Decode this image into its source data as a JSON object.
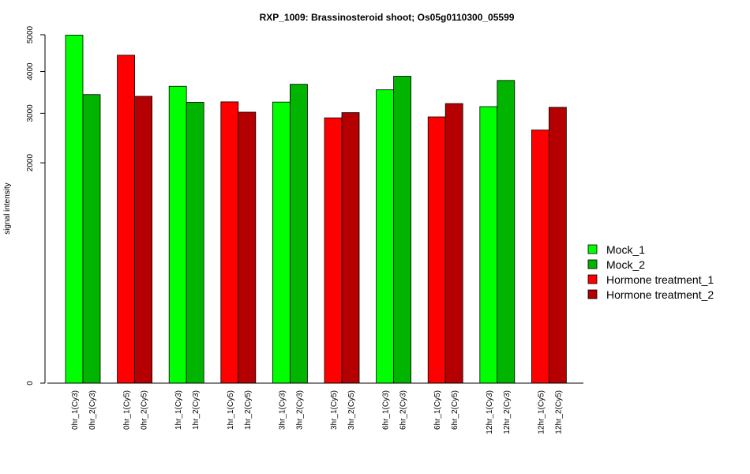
{
  "chart_data": {
    "type": "bar",
    "title": "RXP_1009: Brassinosteroid shoot; Os05g0110300_05599",
    "xlabel": "",
    "ylabel": "signal intensity",
    "y_scale": "sqrt",
    "yticks": [
      0,
      2000,
      3000,
      4000,
      5000
    ],
    "ylim": [
      0,
      5000
    ],
    "grid": false,
    "legend_position": "right",
    "series": [
      {
        "name": "Mock_1",
        "color": "#00ff00"
      },
      {
        "name": "Mock_2",
        "color": "#00b400"
      },
      {
        "name": "Hormone treatment_1",
        "color": "#ff0000"
      },
      {
        "name": "Hormone treatment_2",
        "color": "#b40000"
      }
    ],
    "bars": [
      {
        "label": "0hr_1(Cy3)",
        "value": 4990,
        "series": "Mock_1"
      },
      {
        "label": "0hr_2(Cy3)",
        "value": 3430,
        "series": "Mock_2"
      },
      {
        "label": "0hr_1(Cy5)",
        "value": 4430,
        "series": "Hormone treatment_1"
      },
      {
        "label": "0hr_2(Cy5)",
        "value": 3390,
        "series": "Hormone treatment_2"
      },
      {
        "label": "1hr_1(Cy3)",
        "value": 3630,
        "series": "Mock_1"
      },
      {
        "label": "1hr_2(Cy3)",
        "value": 3250,
        "series": "Mock_2"
      },
      {
        "label": "1hr_1(Cy5)",
        "value": 3260,
        "series": "Hormone treatment_1"
      },
      {
        "label": "1hr_2(Cy5)",
        "value": 3025,
        "series": "Hormone treatment_2"
      },
      {
        "label": "3hr_1(Cy3)",
        "value": 3255,
        "series": "Mock_1"
      },
      {
        "label": "3hr_2(Cy3)",
        "value": 3680,
        "series": "Mock_2"
      },
      {
        "label": "3hr_1(Cy5)",
        "value": 2900,
        "series": "Hormone treatment_1"
      },
      {
        "label": "3hr_2(Cy5)",
        "value": 3015,
        "series": "Hormone treatment_2"
      },
      {
        "label": "6hr_1(Cy3)",
        "value": 3545,
        "series": "Mock_1"
      },
      {
        "label": "6hr_2(Cy3)",
        "value": 3880,
        "series": "Mock_2"
      },
      {
        "label": "6hr_1(Cy5)",
        "value": 2920,
        "series": "Hormone treatment_1"
      },
      {
        "label": "6hr_2(Cy5)",
        "value": 3220,
        "series": "Hormone treatment_2"
      },
      {
        "label": "12hr_1(Cy3)",
        "value": 3150,
        "series": "Mock_1"
      },
      {
        "label": "12hr_2(Cy3)",
        "value": 3775,
        "series": "Mock_2"
      },
      {
        "label": "12hr_1(Cy5)",
        "value": 2640,
        "series": "Hormone treatment_1"
      },
      {
        "label": "12hr_2(Cy5)",
        "value": 3135,
        "series": "Hormone treatment_2"
      }
    ]
  }
}
